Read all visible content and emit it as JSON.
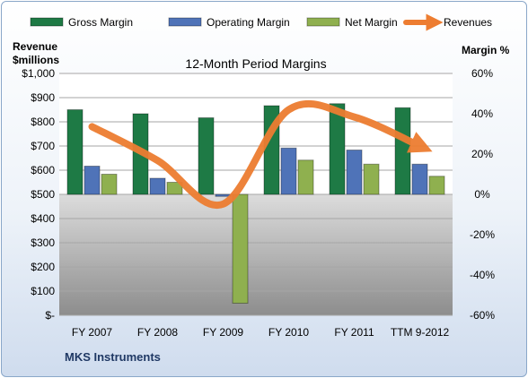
{
  "chart_data": {
    "type": "bar",
    "title": "12-Month Period Margins",
    "company": "MKS Instruments",
    "left_axis_title": [
      "Revenue",
      "$millions"
    ],
    "right_axis_title": "Margin %",
    "categories": [
      "FY 2007",
      "FY 2008",
      "FY 2009",
      "FY 2010",
      "FY 2011",
      "TTM 9-2012"
    ],
    "left_axis": {
      "min": 0,
      "max": 1000,
      "step": 100,
      "tick_labels": [
        "$-",
        "$100",
        "$200",
        "$300",
        "$400",
        "$500",
        "$600",
        "$700",
        "$800",
        "$900",
        "$1,000"
      ]
    },
    "right_axis": {
      "min": -60,
      "max": 60,
      "step": 20,
      "tick_labels": [
        "-60%",
        "-40%",
        "-20%",
        "0%",
        "20%",
        "40%",
        "60%"
      ]
    },
    "series": [
      {
        "name": "Gross Margin",
        "axis": "right",
        "kind": "bar",
        "color": "#1e7a45",
        "values": [
          42,
          40,
          38,
          44,
          45,
          43
        ]
      },
      {
        "name": "Operating Margin",
        "axis": "right",
        "kind": "bar",
        "color": "#4f73b8",
        "values": [
          14,
          8,
          -1,
          23,
          22,
          15
        ]
      },
      {
        "name": "Net Margin",
        "axis": "right",
        "kind": "bar",
        "color": "#8fb04f",
        "values": [
          10,
          6,
          -54,
          17,
          15,
          9
        ]
      },
      {
        "name": "Revenues",
        "axis": "left",
        "kind": "line",
        "color": "#ed7d31",
        "values": [
          780,
          640,
          460,
          850,
          820,
          700
        ]
      }
    ],
    "legend_position": "top",
    "grid": true
  }
}
